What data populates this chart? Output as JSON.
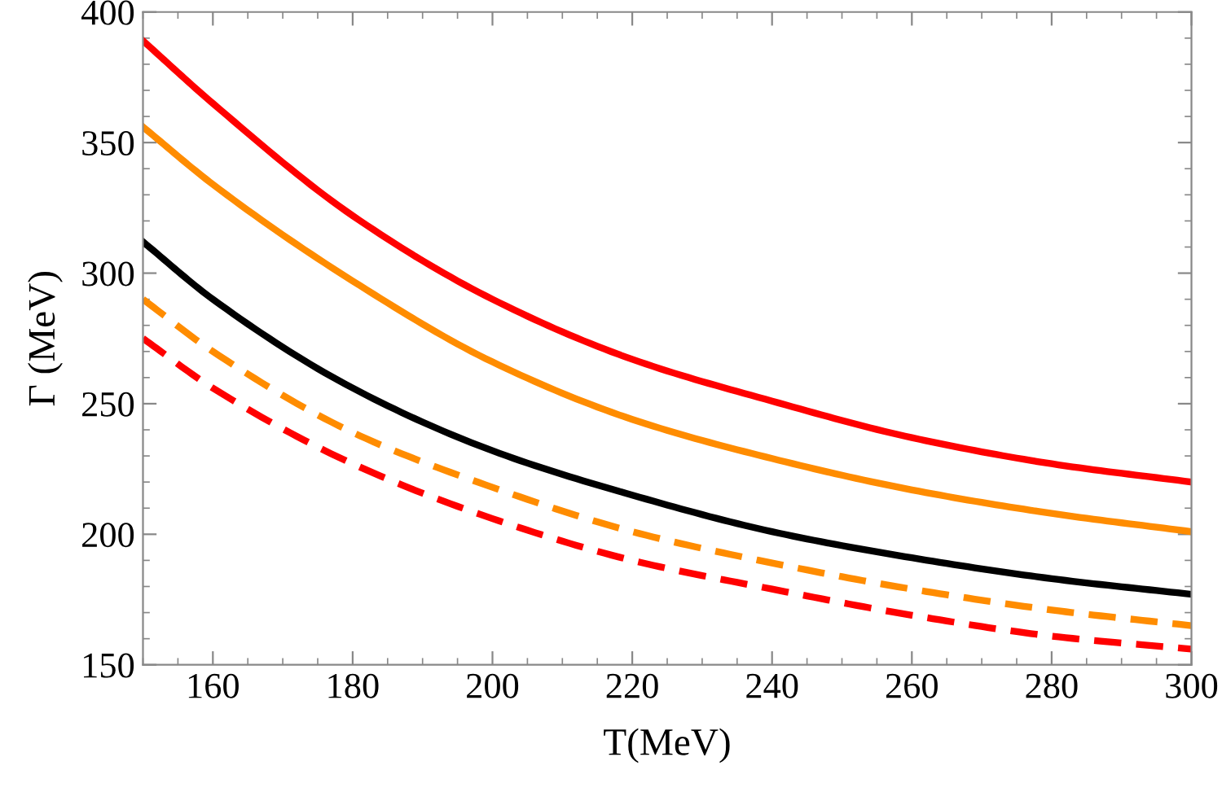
{
  "chart_data": {
    "type": "line",
    "xlabel": "T(MeV)",
    "ylabel": "Γ (MeV)",
    "xlim": [
      150,
      300
    ],
    "ylim": [
      150,
      400
    ],
    "xticks": [
      160,
      180,
      200,
      220,
      240,
      260,
      280,
      300
    ],
    "yticks": [
      150,
      200,
      250,
      300,
      350,
      400
    ],
    "grid": false,
    "legend": false,
    "x": [
      150,
      160,
      180,
      200,
      220,
      240,
      260,
      280,
      300
    ],
    "series": [
      {
        "color": "#ff0000",
        "line_style": "solid",
        "values": [
          389,
          365,
          322,
          290,
          267,
          251,
          237,
          227,
          220
        ]
      },
      {
        "color": "#ff8c00",
        "line_style": "solid",
        "values": [
          356,
          334,
          297,
          266,
          244,
          229,
          217,
          208,
          201
        ]
      },
      {
        "color": "#000000",
        "line_style": "solid",
        "values": [
          312,
          290,
          256,
          232,
          215,
          201,
          191,
          183,
          177
        ]
      },
      {
        "color": "#ff8c00",
        "line_style": "dashed",
        "values": [
          290,
          270,
          239,
          218,
          201,
          189,
          179,
          171,
          165
        ]
      },
      {
        "color": "#ff0000",
        "line_style": "dashed",
        "values": [
          275,
          256,
          227,
          206,
          190,
          179,
          169,
          161,
          156
        ]
      }
    ]
  }
}
